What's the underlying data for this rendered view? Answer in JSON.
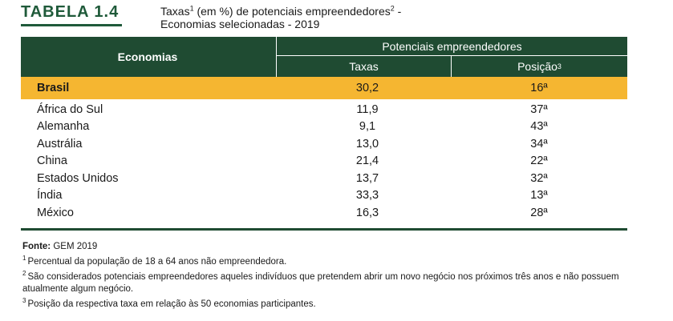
{
  "table_label": "TABELA 1.4",
  "caption": {
    "line1_part1": "Taxas",
    "line1_sup1": "1",
    "line1_part2": " (em %) de potenciais empreendedores",
    "line1_sup2": "2",
    "line1_part3": " -",
    "line2": "Economias selecionadas - 2019"
  },
  "headers": {
    "economias": "Economias",
    "group": "Potenciais empreendedores",
    "taxas": "Taxas",
    "posicao": "Posição",
    "posicao_sup": "3"
  },
  "rows": [
    {
      "name": "Brasil",
      "rate": "30,2",
      "pos": "16ª"
    },
    {
      "name": "África do Sul",
      "rate": "11,9",
      "pos": "37ª"
    },
    {
      "name": "Alemanha",
      "rate": "9,1",
      "pos": "43ª"
    },
    {
      "name": "Austrália",
      "rate": "13,0",
      "pos": "34ª"
    },
    {
      "name": "China",
      "rate": "21,4",
      "pos": "22ª"
    },
    {
      "name": "Estados Unidos",
      "rate": "13,7",
      "pos": "32ª"
    },
    {
      "name": "Índia",
      "rate": "33,3",
      "pos": "13ª"
    },
    {
      "name": "México",
      "rate": "16,3",
      "pos": "28ª"
    }
  ],
  "footer": {
    "fonte_label": "Fonte:",
    "fonte_value": " GEM 2019",
    "notes": [
      {
        "num": "1",
        "text": "Percentual da população de 18 a 64 anos não empreendedora."
      },
      {
        "num": "2",
        "text": "São considerados potenciais empreendedores aqueles indivíduos que pretendem abrir um novo negócio nos próximos três anos e não possuem atualmente algum negócio."
      },
      {
        "num": "3",
        "text": "Posição da respectiva taxa em relação às 50 economias participantes."
      }
    ]
  },
  "colors": {
    "header_green": "#1f4b32",
    "label_green": "#1f5a3a",
    "highlight": "#f5b631"
  }
}
